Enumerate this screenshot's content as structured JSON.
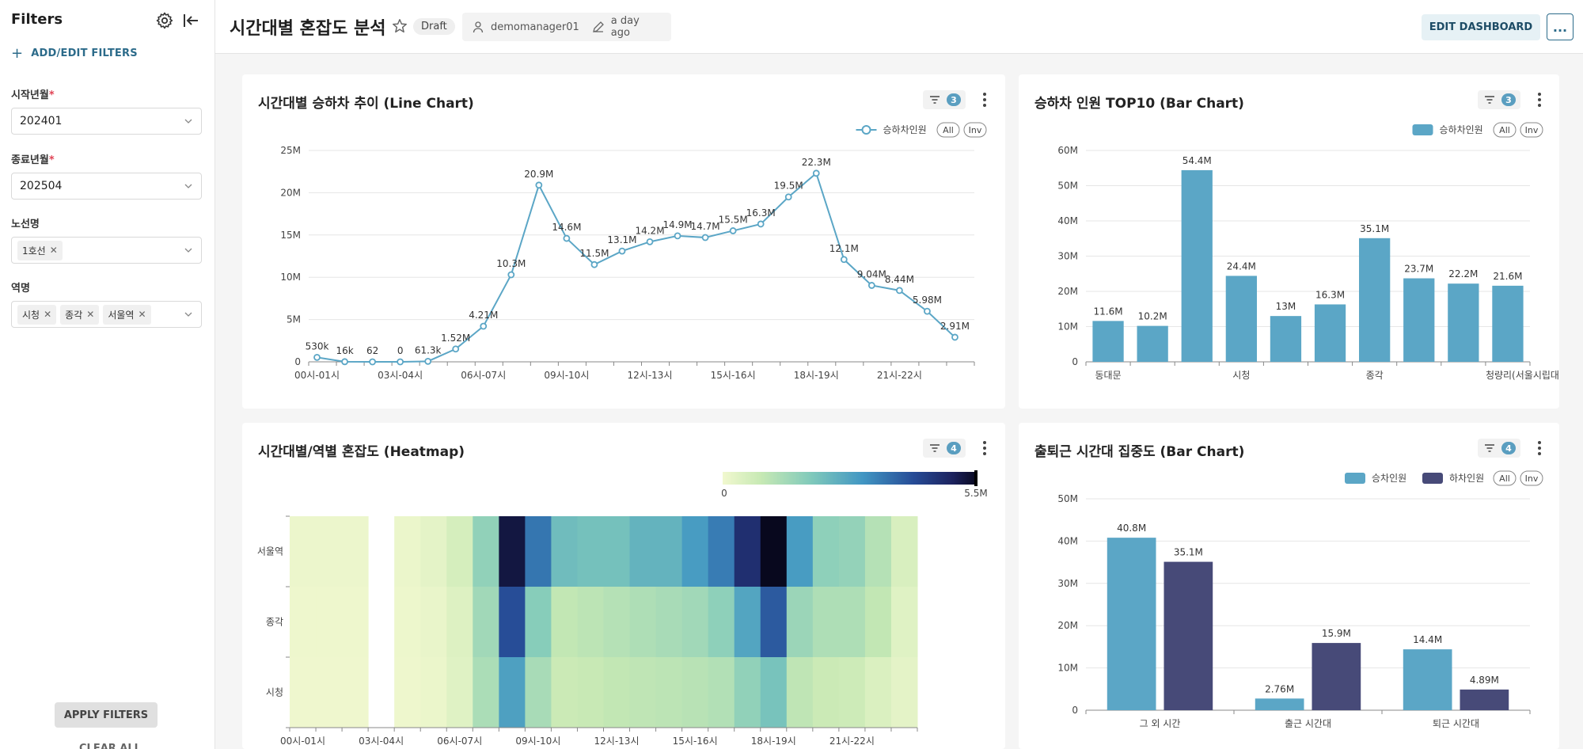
{
  "sidebar": {
    "title": "Filters",
    "add_label": "ADD/EDIT FILTERS",
    "filters": [
      {
        "label": "시작년월",
        "required": true,
        "value": "202401"
      },
      {
        "label": "종료년월",
        "required": true,
        "value": "202504"
      },
      {
        "label": "노선명",
        "required": false,
        "tags": [
          "1호선"
        ]
      },
      {
        "label": "역명",
        "required": false,
        "tags": [
          "시청",
          "종각",
          "서울역"
        ]
      }
    ],
    "apply_label": "APPLY FILTERS",
    "clear_label": "CLEAR ALL"
  },
  "header": {
    "title": "시간대별 혼잡도 분석",
    "status": "Draft",
    "owner": "demomanager01",
    "modified": "a day ago",
    "edit_label": "EDIT DASHBOARD",
    "more_label": "..."
  },
  "colors": {
    "primary": "#5ba6c6",
    "secondary": "#474a78",
    "accent": "#2c6b8a"
  },
  "cards": {
    "line": {
      "title": "시간대별 승하차 추이 (Line Chart)",
      "filter_count": "3"
    },
    "top10": {
      "title": "승하차 인원 TOP10 (Bar Chart)",
      "filter_count": "3"
    },
    "heatmap": {
      "title": "시간대별/역별 혼잡도 (Heatmap)",
      "filter_count": "4"
    },
    "commute": {
      "title": "출퇴근 시간대 집중도 (Bar Chart)",
      "filter_count": "4"
    }
  },
  "legend_buttons": {
    "all": "All",
    "inv": "Inv"
  },
  "chart_data": [
    {
      "type": "line",
      "title": "시간대별 승하차 추이 (Line Chart)",
      "series": [
        {
          "name": "승하차인원",
          "values": [
            530000,
            16000,
            62,
            0,
            61300,
            1520000,
            4210000,
            10300000,
            20900000,
            14600000,
            11500000,
            13100000,
            14200000,
            14900000,
            14700000,
            15500000,
            16300000,
            19500000,
            22300000,
            12100000,
            9040000,
            8440000,
            5980000,
            2910000
          ]
        }
      ],
      "value_labels": [
        "530k",
        "16k",
        "62",
        "0",
        "61.3k",
        "1.52M",
        "4.21M",
        "10.3M",
        "20.9M",
        "14.6M",
        "11.5M",
        "13.1M",
        "14.2M",
        "14.9M",
        "14.7M",
        "15.5M",
        "16.3M",
        "19.5M",
        "22.3M",
        "12.1M",
        "9.04M",
        "8.44M",
        "5.98M",
        "2.91M"
      ],
      "x_tick_labels": [
        "00시-01시",
        "03시-04시",
        "06시-07시",
        "09시-10시",
        "12시-13시",
        "15시-16시",
        "18시-19시",
        "21시-22시"
      ],
      "y_tick_labels": [
        "0",
        "5M",
        "10M",
        "15M",
        "20M",
        "25M"
      ],
      "ylim": [
        0,
        25000000
      ],
      "grid": true,
      "legend": "top-right"
    },
    {
      "type": "bar",
      "title": "승하차 인원 TOP10 (Bar Chart)",
      "series": [
        {
          "name": "승하차인원",
          "values": [
            11600000,
            10200000,
            54400000,
            24400000,
            13000000,
            16300000,
            35100000,
            23700000,
            22200000,
            21600000
          ]
        }
      ],
      "value_labels": [
        "11.6M",
        "10.2M",
        "54.4M",
        "24.4M",
        "13M",
        "16.3M",
        "35.1M",
        "23.7M",
        "22.2M",
        "21.6M"
      ],
      "x_tick_labels": [
        "동대문",
        "시청",
        "종각",
        "청량리(서울시립대입구)"
      ],
      "y_tick_labels": [
        "0",
        "10M",
        "20M",
        "30M",
        "40M",
        "50M",
        "60M"
      ],
      "ylim": [
        0,
        60000000
      ],
      "grid": true,
      "legend": "top-right"
    },
    {
      "type": "heatmap",
      "title": "시간대별/역별 혼잡도 (Heatmap)",
      "rows": [
        "서울역",
        "종각",
        "시청"
      ],
      "x_tick_labels": [
        "00시-01시",
        "03시-04시",
        "06시-07시",
        "09시-10시",
        "12시-13시",
        "15시-16시",
        "18시-19시",
        "21시-22시"
      ],
      "values": [
        [
          0.1,
          0.1,
          0.1,
          null,
          0.12,
          0.25,
          0.55,
          1.65,
          5.2,
          3.5,
          2.2,
          2.1,
          2.1,
          2.4,
          2.4,
          2.9,
          3.4,
          4.7,
          5.5,
          2.9,
          1.7,
          1.6,
          1.1,
          0.5
        ],
        [
          0.05,
          0.05,
          0.05,
          null,
          0.08,
          0.15,
          0.4,
          1.4,
          4.1,
          1.8,
          0.9,
          1.0,
          1.1,
          1.2,
          1.3,
          1.4,
          1.7,
          2.7,
          3.9,
          1.5,
          1.2,
          1.2,
          0.9,
          0.35
        ],
        [
          0.04,
          0.04,
          0.04,
          null,
          0.05,
          0.12,
          0.35,
          1.25,
          2.8,
          1.3,
          0.75,
          0.8,
          0.9,
          0.95,
          1.0,
          1.05,
          1.15,
          1.65,
          2.05,
          0.95,
          0.75,
          0.7,
          0.45,
          0.25
        ]
      ],
      "scale_labels": [
        "0",
        "5.5M"
      ],
      "vmin": 0,
      "vmax": 5.5
    },
    {
      "type": "bar",
      "title": "출퇴근 시간대 집중도 (Bar Chart)",
      "categories": [
        "그 외 시간",
        "출근 시간대",
        "퇴근 시간대"
      ],
      "series": [
        {
          "name": "승차인원",
          "values": [
            40800000,
            2760000,
            14400000
          ],
          "labels": [
            "40.8M",
            "2.76M",
            "14.4M"
          ]
        },
        {
          "name": "하차인원",
          "values": [
            35100000,
            15900000,
            4890000
          ],
          "labels": [
            "35.1M",
            "15.9M",
            "4.89M"
          ]
        }
      ],
      "y_tick_labels": [
        "0",
        "10M",
        "20M",
        "30M",
        "40M",
        "50M"
      ],
      "ylim": [
        0,
        50000000
      ],
      "grid": true,
      "legend": "top-right"
    }
  ]
}
